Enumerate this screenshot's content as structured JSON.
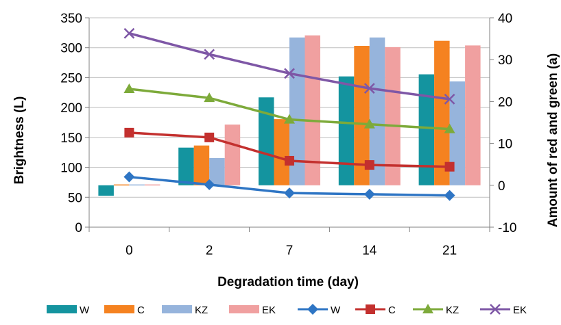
{
  "chart_data": {
    "type": "bar+line",
    "categories": [
      "0",
      "2",
      "7",
      "14",
      "21"
    ],
    "xlabel": "Degradation time (day)",
    "ylabel": "Brightness (L)",
    "y2label": "Amount of red and green (a)",
    "ylim": [
      0,
      350
    ],
    "y2lim": [
      -10,
      40
    ],
    "yticks": [
      "0",
      "50",
      "100",
      "150",
      "200",
      "250",
      "300",
      "350"
    ],
    "y2ticks": [
      "-10",
      "0",
      "10",
      "20",
      "30",
      "40"
    ],
    "grid": true,
    "legend_position": "bottom",
    "bar_series": [
      {
        "name": "W",
        "color": "#14949F",
        "values": [
          -2.5,
          9,
          21,
          26,
          26.5
        ]
      },
      {
        "name": "C",
        "color": "#F58220",
        "values": [
          0.2,
          9.5,
          15.8,
          33.3,
          34.5
        ]
      },
      {
        "name": "KZ",
        "color": "#96B4DC",
        "values": [
          0.2,
          6.5,
          35.3,
          35.3,
          24.8
        ]
      },
      {
        "name": "EK",
        "color": "#F0A0A0",
        "values": [
          0.2,
          14.5,
          35.8,
          33,
          33.4
        ]
      }
    ],
    "line_series": [
      {
        "name": "W",
        "color": "#2E75C4",
        "marker": "diamond",
        "values": [
          84,
          71,
          57,
          55,
          53
        ]
      },
      {
        "name": "C",
        "color": "#C3302E",
        "marker": "square",
        "values": [
          158,
          150,
          111,
          104,
          101
        ]
      },
      {
        "name": "KZ",
        "color": "#7DAA3A",
        "marker": "triangle",
        "values": [
          231,
          216,
          180,
          172,
          164
        ]
      },
      {
        "name": "EK",
        "color": "#7E57A6",
        "marker": "x",
        "values": [
          324,
          289,
          257,
          232,
          214
        ]
      }
    ]
  }
}
